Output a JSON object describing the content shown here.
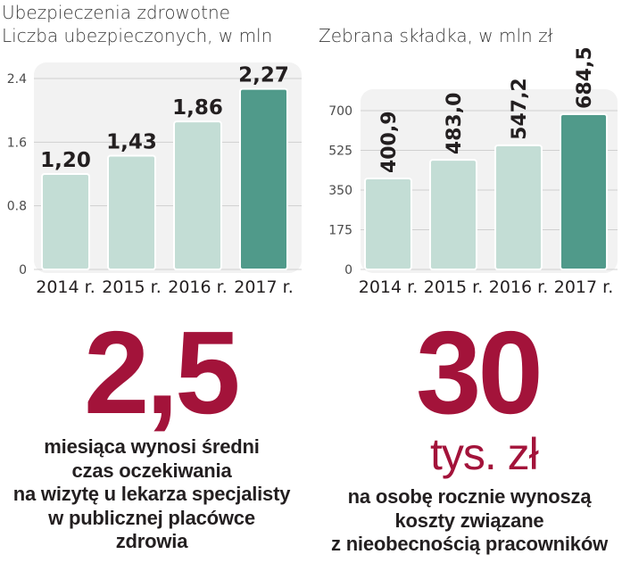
{
  "header": {
    "section_title": "Ubezpieczenia zdrowotne",
    "left_title": "Liczba ubezpieczonych, w mln",
    "right_title": "Zebrana składka, w mln zł"
  },
  "colors": {
    "bar_light": "#c3ddd5",
    "bar_highlight": "#509a8a",
    "panel_bg": "#f2f2f2",
    "grid": "#d0d0d0",
    "accent": "#a3133a"
  },
  "chart_data": [
    {
      "type": "bar",
      "title": "Liczba ubezpieczonych, w mln",
      "categories": [
        "2014 r.",
        "2015 r.",
        "2016 r.",
        "2017 r."
      ],
      "values": [
        1.2,
        1.43,
        1.86,
        2.27
      ],
      "value_labels": [
        "1,20",
        "1,43",
        "1,86",
        "2,27"
      ],
      "yticks": [
        0,
        0.8,
        1.6,
        2.4
      ],
      "ytick_labels": [
        "0",
        "0.8",
        "1.6",
        "2.4"
      ],
      "ylim": [
        0,
        2.4
      ],
      "highlight_index": 3,
      "grid": true
    },
    {
      "type": "bar",
      "title": "Zebrana składka, w mln zł",
      "categories": [
        "2014 r.",
        "2015 r.",
        "2016 r.",
        "2017 r."
      ],
      "values": [
        400.9,
        483.0,
        547.2,
        684.5
      ],
      "value_labels": [
        "400,9",
        "483,0",
        "547,2",
        "684,5"
      ],
      "yticks": [
        0,
        175,
        350,
        525,
        700
      ],
      "ytick_labels": [
        "0",
        "175",
        "350",
        "525",
        "700"
      ],
      "ylim": [
        0,
        700
      ],
      "highlight_index": 3,
      "grid": true
    }
  ],
  "stats": {
    "left": {
      "value": "2,5",
      "lines": [
        "miesiąca wynosi średni",
        "czas oczekiwania",
        "na wizytę u lekarza specjalisty",
        "w publicznej placówce",
        "zdrowia"
      ]
    },
    "right": {
      "value": "30",
      "unit": "tys. zł",
      "lines": [
        "na osobę rocznie wynoszą",
        "koszty związane",
        "z nieobecnością pracowników"
      ]
    }
  }
}
